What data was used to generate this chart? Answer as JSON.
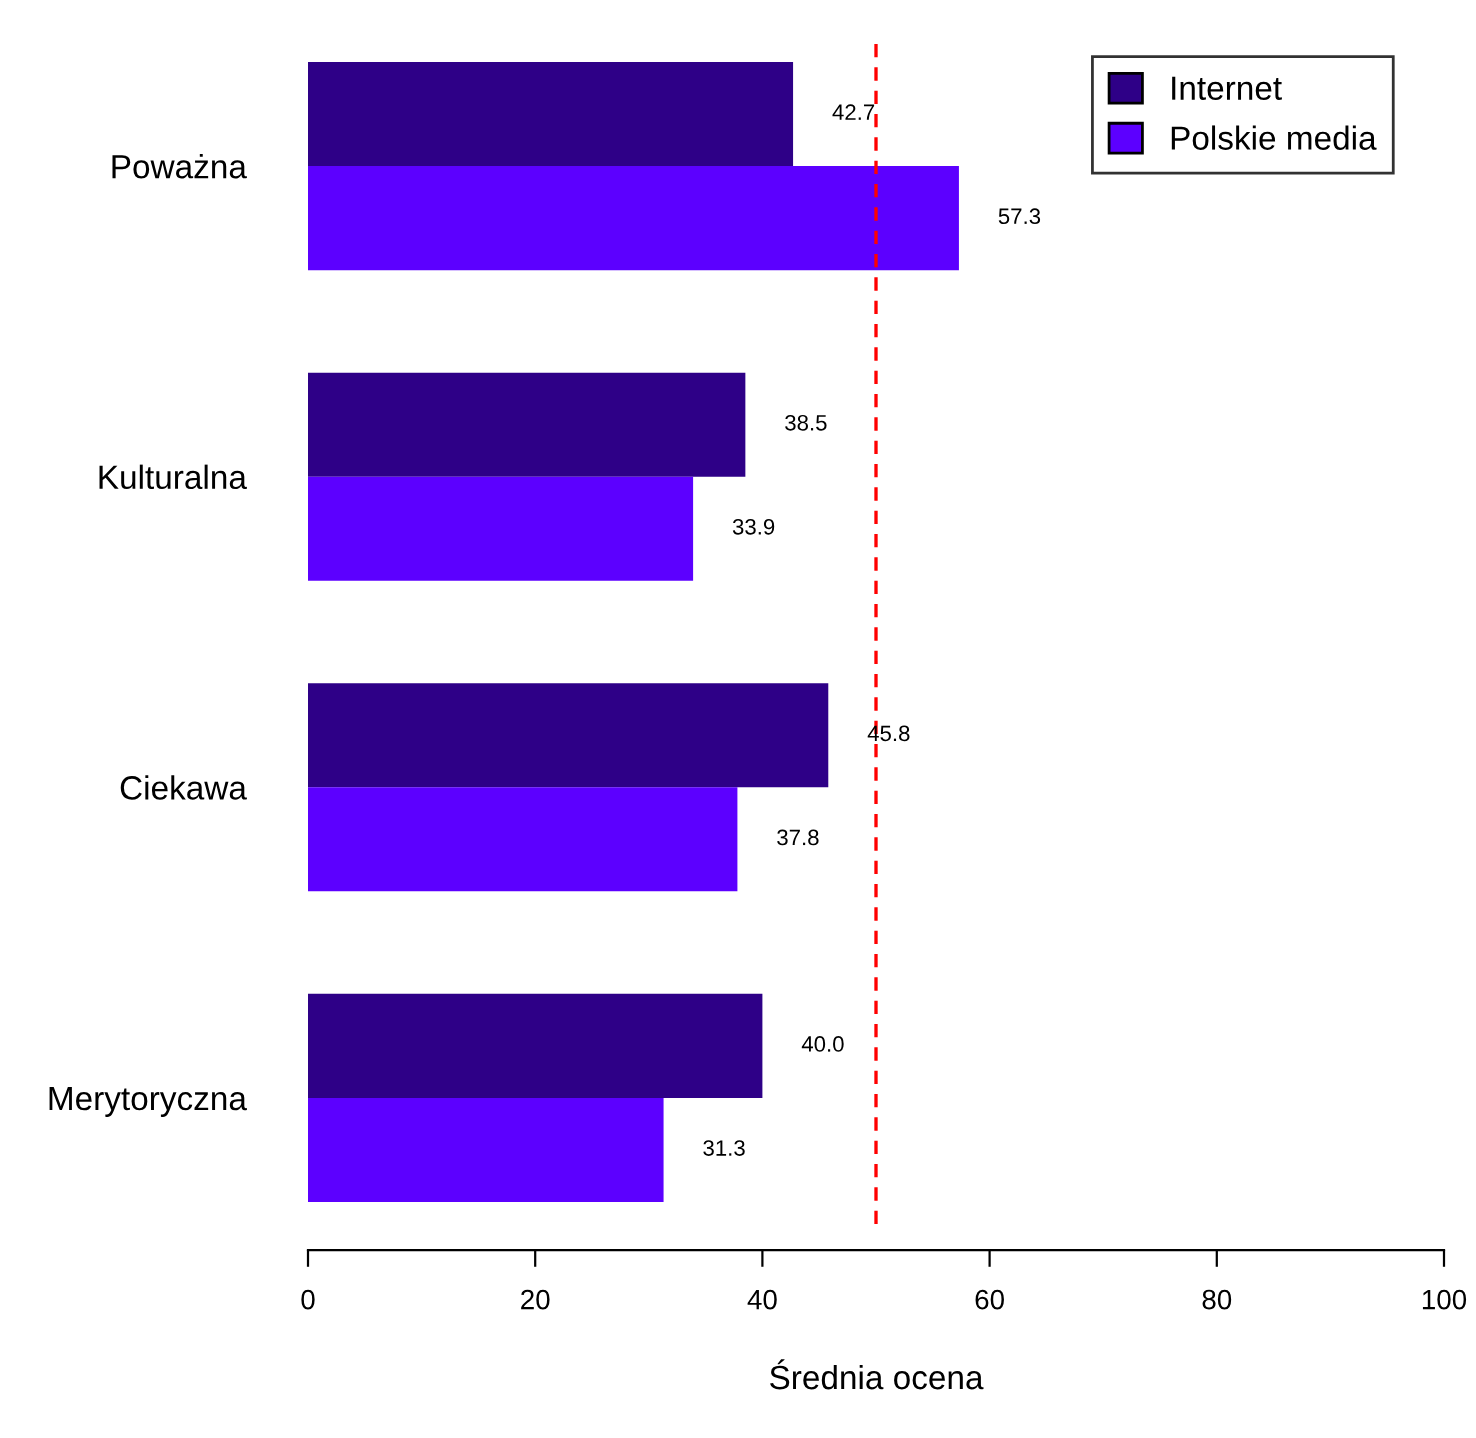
{
  "chart_data": {
    "type": "bar",
    "orientation": "horizontal",
    "categories": [
      "Poważna",
      "Kulturalna",
      "Ciekawa",
      "Merytoryczna"
    ],
    "series": [
      {
        "name": "Internet",
        "color": "#2e0087",
        "values": [
          42.7,
          38.5,
          45.8,
          40.0
        ],
        "value_labels": [
          "42.7",
          "38.5",
          "45.8",
          "40.0"
        ]
      },
      {
        "name": "Polskie media",
        "color": "#5c00ff",
        "values": [
          57.3,
          33.9,
          37.8,
          31.3
        ],
        "value_labels": [
          "57.3",
          "33.9",
          "37.8",
          "31.3"
        ]
      }
    ],
    "xlabel": "Średnia ocena",
    "xlim": [
      0,
      100
    ],
    "xticks": [
      0,
      20,
      40,
      60,
      80,
      100
    ],
    "ref_lines": [
      {
        "axis": "x",
        "value": 50,
        "color": "#ff0000",
        "line_style": "dashed"
      }
    ],
    "legend": "top right",
    "grid": false
  }
}
